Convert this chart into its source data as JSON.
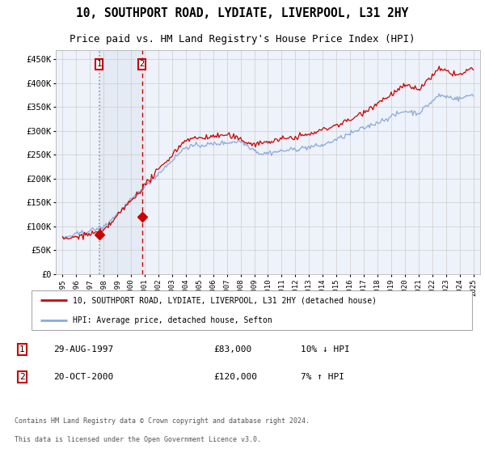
{
  "title": "10, SOUTHPORT ROAD, LYDIATE, LIVERPOOL, L31 2HY",
  "subtitle": "Price paid vs. HM Land Registry's House Price Index (HPI)",
  "title_fontsize": 10.5,
  "subtitle_fontsize": 9,
  "line1_label": "10, SOUTHPORT ROAD, LYDIATE, LIVERPOOL, L31 2HY (detached house)",
  "line2_label": "HPI: Average price, detached house, Sefton",
  "line1_color": "#cc0000",
  "line2_color": "#88aadd",
  "vline1_color": "#aabbcc",
  "vline2_color": "#cc0000",
  "bg_color": "#ffffff",
  "plot_bg_color": "#eef2fa",
  "grid_color": "#cccccc",
  "purchase1_date": 1997.66,
  "purchase1_price": 83000,
  "purchase2_date": 2000.8,
  "purchase2_price": 120000,
  "yticks": [
    0,
    50000,
    100000,
    150000,
    200000,
    250000,
    300000,
    350000,
    400000,
    450000
  ],
  "ytick_labels": [
    "£0",
    "£50K",
    "£100K",
    "£150K",
    "£200K",
    "£250K",
    "£300K",
    "£350K",
    "£400K",
    "£450K"
  ],
  "xmin": 1994.5,
  "xmax": 2025.5,
  "ymin": 0,
  "ymax": 470000,
  "footer_text1": "Contains HM Land Registry data © Crown copyright and database right 2024.",
  "footer_text2": "This data is licensed under the Open Government Licence v3.0.",
  "xtick_years": [
    1995,
    1996,
    1997,
    1998,
    1999,
    2000,
    2001,
    2002,
    2003,
    2004,
    2005,
    2006,
    2007,
    2008,
    2009,
    2010,
    2011,
    2012,
    2013,
    2014,
    2015,
    2016,
    2017,
    2018,
    2019,
    2020,
    2021,
    2022,
    2023,
    2024,
    2025
  ],
  "seed": 42
}
